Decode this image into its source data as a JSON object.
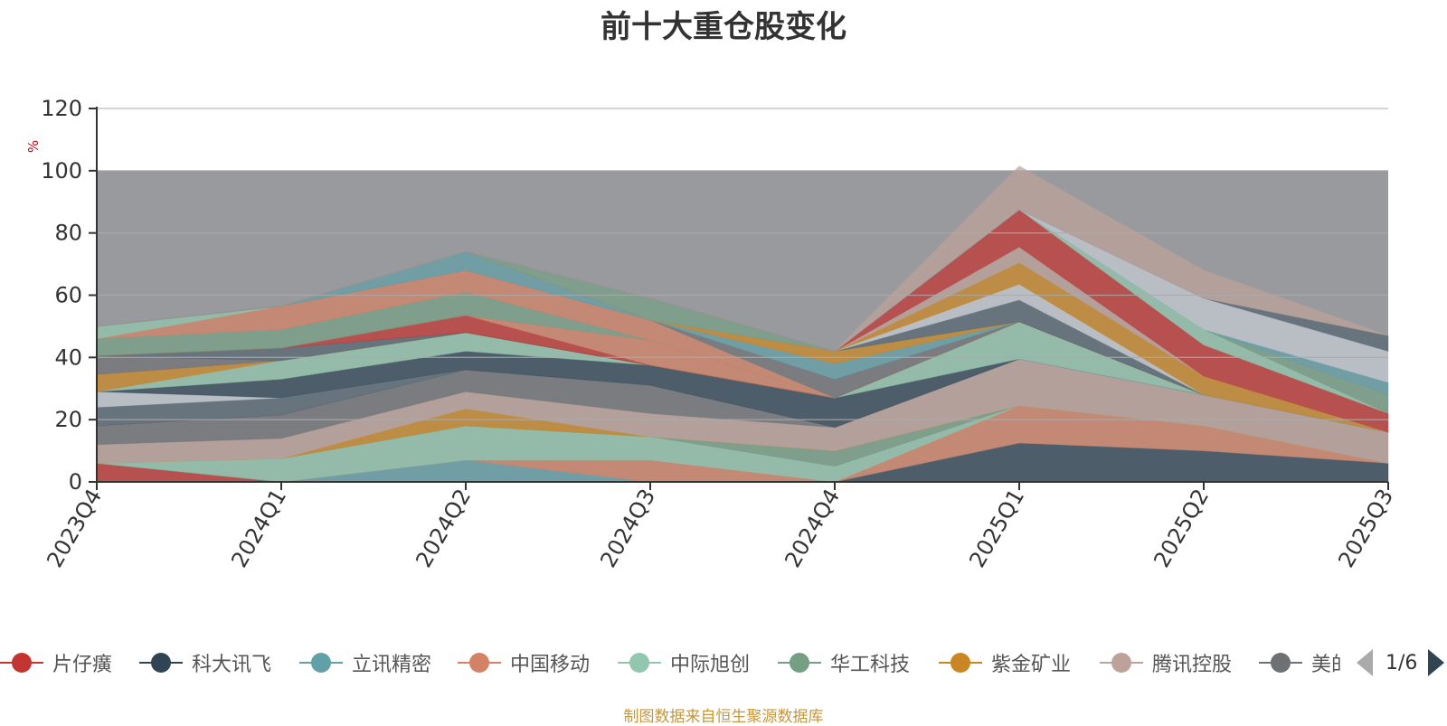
{
  "title": "前十大重仓股变化",
  "source_note": "制图数据来自恒生聚源数据库",
  "legend": {
    "items": [
      {
        "label": "片仔癀",
        "color": "#c23531"
      },
      {
        "label": "科大讯飞",
        "color": "#2f4554"
      },
      {
        "label": "立讯精密",
        "color": "#61a0a8"
      },
      {
        "label": "中国移动",
        "color": "#d48265"
      },
      {
        "label": "中际旭创",
        "color": "#91c7ae"
      },
      {
        "label": "华工科技",
        "color": "#749f83"
      },
      {
        "label": "紫金矿业",
        "color": "#ca8622"
      },
      {
        "label": "腾讯控股",
        "color": "#bda29a"
      },
      {
        "label": "美的集团",
        "color": "#6e7074"
      }
    ],
    "page": "1/6"
  },
  "chart_data": {
    "type": "area",
    "stacked": true,
    "title": "前十大重仓股变化",
    "ylabel": "%",
    "ylim": [
      0,
      120
    ],
    "yticks": [
      0,
      20,
      40,
      60,
      80,
      100,
      120
    ],
    "grid": true,
    "background_band": {
      "from": 0,
      "to": 100,
      "color": "#999a9e"
    },
    "categories": [
      "2023Q4",
      "2024Q1",
      "2024Q2",
      "2024Q3",
      "2024Q4",
      "2025Q1",
      "2025Q2",
      "2025Q3"
    ],
    "series": [
      {
        "color": "#c23531",
        "values": [
          6,
          0,
          0,
          0,
          0,
          0,
          0,
          0
        ]
      },
      {
        "color": "#2f4554",
        "values": [
          0,
          0,
          0,
          0,
          0,
          12.5,
          10,
          6
        ]
      },
      {
        "color": "#61a0a8",
        "values": [
          0,
          0,
          7,
          0,
          0,
          0,
          0,
          0
        ]
      },
      {
        "color": "#d48265",
        "values": [
          0,
          0,
          0,
          7,
          0,
          12,
          8,
          0
        ]
      },
      {
        "color": "#91c7ae",
        "values": [
          0,
          7.5,
          11,
          7.5,
          5,
          0,
          0,
          0
        ]
      },
      {
        "color": "#749f83",
        "values": [
          0,
          0,
          0,
          0,
          5,
          0,
          0,
          0
        ]
      },
      {
        "color": "#ca8622",
        "values": [
          0,
          0,
          5.5,
          0,
          0,
          0,
          0,
          0
        ]
      },
      {
        "color": "#bda29a",
        "values": [
          6,
          6.5,
          5.5,
          7.5,
          7.5,
          15,
          10,
          10
        ]
      },
      {
        "color": "#6e7074",
        "values": [
          6,
          7.5,
          7,
          9,
          0,
          0,
          0,
          0
        ]
      },
      {
        "color": "#546570",
        "values": [
          6,
          5.5,
          0,
          0,
          0,
          0,
          0,
          0
        ]
      },
      {
        "color": "#c4ccd3",
        "values": [
          5,
          0,
          0,
          0,
          0,
          0,
          0,
          0
        ]
      },
      {
        "color": "#2f4554",
        "values": [
          0,
          6,
          6,
          6.5,
          9.5,
          0,
          0,
          0
        ]
      },
      {
        "color": "#91c7ae",
        "values": [
          0,
          6,
          6,
          0,
          0,
          12,
          0,
          0
        ]
      },
      {
        "color": "#ca8622",
        "values": [
          5.5,
          0,
          0,
          0,
          0,
          0,
          0,
          0
        ]
      },
      {
        "color": "#6e7074",
        "values": [
          6,
          0,
          0,
          0,
          0,
          0,
          0,
          0
        ]
      },
      {
        "color": "#546570",
        "values": [
          0,
          4,
          0,
          0,
          0,
          0,
          0,
          0
        ]
      },
      {
        "color": "#c23531",
        "values": [
          0,
          0,
          5.5,
          0,
          0,
          0,
          0,
          0
        ]
      },
      {
        "color": "#d48265",
        "values": [
          0,
          0,
          0,
          8,
          0,
          0,
          0,
          0
        ]
      },
      {
        "color": "#749f83",
        "values": [
          5.5,
          6,
          7.5,
          0,
          0,
          0,
          0,
          0
        ]
      },
      {
        "color": "#d48265",
        "values": [
          0,
          7.5,
          7,
          6.5,
          0,
          0,
          0,
          0
        ]
      },
      {
        "color": "#91c7ae",
        "values": [
          4,
          0,
          0,
          0,
          0,
          0,
          0,
          0
        ]
      },
      {
        "color": "#6e7074",
        "values": [
          0,
          0,
          0,
          0,
          6,
          0,
          0,
          0
        ]
      },
      {
        "color": "#61a0a8",
        "values": [
          0,
          0,
          6,
          0,
          5,
          0,
          0,
          0
        ]
      },
      {
        "color": "#ca8622",
        "values": [
          0,
          0,
          0,
          0,
          4,
          0,
          0,
          0
        ]
      },
      {
        "color": "#749f83",
        "values": [
          0,
          0,
          0,
          7,
          0,
          0,
          0,
          0
        ]
      },
      {
        "color": "#546570",
        "values": [
          0,
          0,
          0,
          0,
          0,
          7,
          0,
          0
        ]
      },
      {
        "color": "#c4ccd3",
        "values": [
          0,
          0,
          0,
          0,
          0,
          5,
          0,
          0
        ]
      },
      {
        "color": "#ca8622",
        "values": [
          0,
          0,
          0,
          0,
          0,
          7,
          6,
          0
        ]
      },
      {
        "color": "#bda29a",
        "values": [
          0,
          0,
          0,
          0,
          0,
          5,
          0,
          0
        ]
      },
      {
        "color": "#c23531",
        "values": [
          0,
          0,
          0,
          0,
          0,
          12,
          10,
          6
        ]
      },
      {
        "color": "#91c7ae",
        "values": [
          0,
          0,
          0,
          0,
          0,
          0,
          5,
          0
        ]
      },
      {
        "color": "#749f83",
        "values": [
          0,
          0,
          0,
          0,
          0,
          0,
          0,
          6
        ]
      },
      {
        "color": "#61a0a8",
        "values": [
          0,
          0,
          0,
          0,
          0,
          0,
          0,
          4
        ]
      },
      {
        "color": "#c4ccd3",
        "values": [
          0,
          0,
          0,
          0,
          0,
          0,
          10,
          10
        ]
      },
      {
        "color": "#546570",
        "values": [
          0,
          0,
          0,
          0,
          0,
          0,
          0,
          5
        ]
      },
      {
        "color": "#bda29a",
        "values": [
          0,
          0,
          0,
          0,
          0,
          14,
          9,
          0
        ]
      }
    ]
  }
}
